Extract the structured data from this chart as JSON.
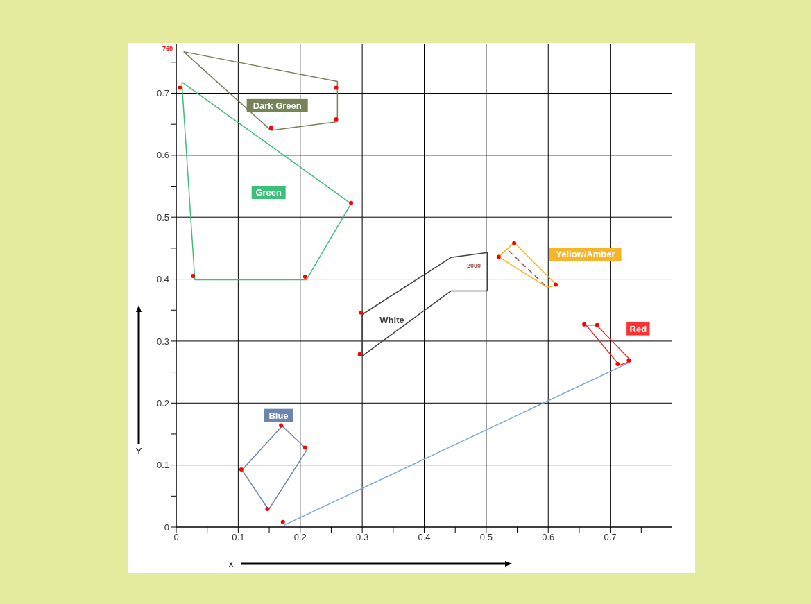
{
  "chart_data": {
    "type": "line",
    "xlabel": "x",
    "ylabel": "Y",
    "xlim": [
      0,
      0.8
    ],
    "ylim": [
      0,
      0.78
    ],
    "xticks": [
      0,
      {
        "value": 0.05,
        "label": null
      },
      0.1,
      {
        "value": 0.15,
        "label": null
      },
      0.2,
      {
        "value": 0.25,
        "label": null
      },
      0.3,
      {
        "value": 0.35,
        "label": null
      },
      0.4,
      {
        "value": 0.45,
        "label": null
      },
      0.5,
      {
        "value": 0.55,
        "label": null
      },
      0.6,
      {
        "value": 0.65,
        "label": null
      },
      0.7,
      {
        "value": 0.75,
        "label": null
      }
    ],
    "yticks": [
      0,
      {
        "value": 0.05,
        "label": null
      },
      0.1,
      {
        "value": 0.15,
        "label": null
      },
      0.2,
      {
        "value": 0.25,
        "label": null
      },
      0.3,
      {
        "value": 0.35,
        "label": null
      },
      0.4,
      {
        "value": 0.45,
        "label": null
      },
      0.5,
      {
        "value": 0.55,
        "label": null
      },
      0.6,
      {
        "value": 0.65,
        "label": null
      },
      0.7,
      {
        "value": 0.75,
        "label": null
      }
    ],
    "grid": true,
    "line_style": "solid",
    "series": [
      {
        "color": "#76835a",
        "x": [
          0.012,
          0.26,
          0.26
        ],
        "values": [
          0.767,
          0.719,
          0.654
        ]
      },
      {
        "color": "#76835a",
        "x": [
          0.012,
          0.153,
          0.26
        ],
        "values": [
          0.767,
          0.64,
          0.654
        ]
      },
      {
        "color": "#3cbf78",
        "x": [
          0.009,
          0.282
        ],
        "values": [
          0.718,
          0.522
        ]
      },
      {
        "color": "#3cbf78",
        "x": [
          0.009,
          0.03,
          0.21,
          0.282
        ],
        "values": [
          0.718,
          0.399,
          0.399,
          0.522
        ]
      },
      {
        "color": "#404040",
        "x": [
          0.3,
          0.443,
          0.502,
          0.502
        ],
        "values": [
          0.343,
          0.435,
          0.443,
          0.381
        ]
      },
      {
        "color": "#404040",
        "x": [
          0.3,
          0.3,
          0.443,
          0.502
        ],
        "values": [
          0.343,
          0.276,
          0.381,
          0.381
        ]
      },
      {
        "color": "#f5b52a",
        "x": [
          0.52,
          0.545,
          0.614
        ],
        "values": [
          0.436,
          0.459,
          0.39
        ]
      },
      {
        "color": "#f5b52a",
        "x": [
          0.52,
          0.598,
          0.614
        ],
        "values": [
          0.436,
          0.387,
          0.39
        ]
      },
      {
        "color": "#ff3030",
        "x": [
          0.661,
          0.678,
          0.734
        ],
        "values": [
          0.326,
          0.326,
          0.268
        ]
      },
      {
        "color": "#ff3030",
        "x": [
          0.661,
          0.715,
          0.734
        ],
        "values": [
          0.326,
          0.261,
          0.268
        ]
      },
      {
        "color": "#6a86b0",
        "x": [
          0.106,
          0.171,
          0.211
        ],
        "values": [
          0.092,
          0.163,
          0.125
        ]
      },
      {
        "color": "#6a86b0",
        "x": [
          0.106,
          0.149,
          0.211
        ],
        "values": [
          0.092,
          0.028,
          0.125
        ]
      },
      {
        "type": "scatter",
        "marker": "circle",
        "color": "#ff0000",
        "x": [
          0.153,
          0.258,
          0.258,
          0.006,
          0.282,
          0.208,
          0.027,
          0.298,
          0.296,
          0.52,
          0.545,
          0.612,
          0.658,
          0.679,
          0.73,
          0.712,
          0.105,
          0.169,
          0.208,
          0.147,
          0.172
        ],
        "values": [
          0.644,
          0.709,
          0.658,
          0.709,
          0.523,
          0.404,
          0.405,
          0.346,
          0.279,
          0.436,
          0.458,
          0.391,
          0.327,
          0.326,
          0.269,
          0.263,
          0.093,
          0.164,
          0.128,
          0.029,
          0.008
        ]
      },
      {
        "color": "#a05050",
        "line_style": "dashed",
        "x": [
          0.536,
          0.598
        ],
        "values": [
          0.446,
          0.387
        ]
      },
      {
        "color": "#7aa6d8",
        "x": [
          0.174,
          0.734
        ],
        "values": [
          0.003,
          0.267
        ]
      }
    ],
    "annotations": [
      "Dark Green",
      "Green",
      "White",
      "Yellow/Amber",
      "Red",
      "Blue",
      "760",
      "2000"
    ]
  }
}
